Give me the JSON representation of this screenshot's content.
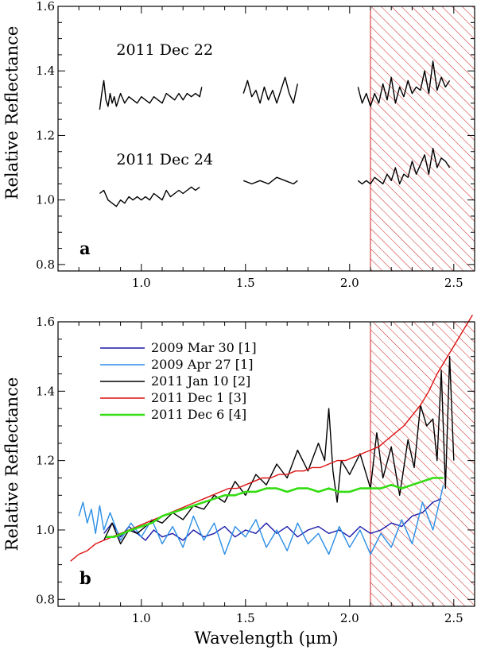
{
  "colors": {
    "hatch": "#cc2222",
    "axis": "#000000"
  },
  "figure": {
    "xlabel": "Wavelength (μm)"
  },
  "chart_data": [
    {
      "type": "line",
      "panel_label": "a",
      "ylabel": "Relative Reflectance",
      "xlim": [
        0.6,
        2.6
      ],
      "ylim": [
        0.78,
        1.6
      ],
      "xticks": [
        1.0,
        1.5,
        2.0,
        2.5
      ],
      "xtick_labels": [
        "1.0",
        "1.5",
        "2.0",
        "2.5"
      ],
      "yticks": [
        0.8,
        1.0,
        1.2,
        1.4,
        1.6
      ],
      "ytick_labels": [
        "0.8",
        "1.0",
        "1.2",
        "1.4",
        "1.6"
      ],
      "shaded_region": {
        "x_from": 2.1,
        "x_to": 2.6,
        "style": "red-hatch"
      },
      "annotations": [
        {
          "text": "2011 Dec 22",
          "x": 0.88,
          "y": 1.45
        },
        {
          "text": "2011 Dec 24",
          "x": 0.88,
          "y": 1.11
        }
      ],
      "series": [
        {
          "name": "2011 Dec 22",
          "color": "#000000",
          "segments": [
            {
              "x": [
                0.8,
                0.81,
                0.82,
                0.83,
                0.84,
                0.85,
                0.86,
                0.87,
                0.88,
                0.89,
                0.9,
                0.92,
                0.94,
                0.96,
                0.98,
                1.0,
                1.02,
                1.04,
                1.06,
                1.08,
                1.1,
                1.12,
                1.14,
                1.16,
                1.18,
                1.2,
                1.22,
                1.24,
                1.26,
                1.28,
                1.29
              ],
              "y": [
                1.28,
                1.33,
                1.37,
                1.31,
                1.29,
                1.33,
                1.3,
                1.32,
                1.29,
                1.31,
                1.33,
                1.3,
                1.32,
                1.31,
                1.3,
                1.32,
                1.31,
                1.3,
                1.32,
                1.31,
                1.3,
                1.33,
                1.32,
                1.31,
                1.33,
                1.31,
                1.33,
                1.32,
                1.33,
                1.32,
                1.35
              ]
            },
            {
              "x": [
                1.49,
                1.51,
                1.53,
                1.55,
                1.57,
                1.59,
                1.61,
                1.63,
                1.65,
                1.67,
                1.69,
                1.71,
                1.73,
                1.75
              ],
              "y": [
                1.33,
                1.37,
                1.32,
                1.34,
                1.3,
                1.35,
                1.31,
                1.34,
                1.3,
                1.34,
                1.38,
                1.33,
                1.3,
                1.36
              ]
            },
            {
              "x": [
                2.04,
                2.06,
                2.08,
                2.1,
                2.12,
                2.14,
                2.16,
                2.18,
                2.2,
                2.22,
                2.24,
                2.26,
                2.28,
                2.3,
                2.32,
                2.34,
                2.36,
                2.38,
                2.4,
                2.42,
                2.44,
                2.46,
                2.48
              ],
              "y": [
                1.35,
                1.3,
                1.33,
                1.29,
                1.33,
                1.3,
                1.36,
                1.31,
                1.38,
                1.3,
                1.35,
                1.32,
                1.37,
                1.33,
                1.35,
                1.34,
                1.4,
                1.33,
                1.43,
                1.34,
                1.38,
                1.35,
                1.37
              ]
            }
          ]
        },
        {
          "name": "2011 Dec 24",
          "color": "#000000",
          "segments": [
            {
              "x": [
                0.8,
                0.82,
                0.84,
                0.86,
                0.88,
                0.9,
                0.92,
                0.94,
                0.96,
                0.98,
                1.0,
                1.02,
                1.04,
                1.06,
                1.08,
                1.1,
                1.12,
                1.14,
                1.16,
                1.18,
                1.2,
                1.22,
                1.24,
                1.26,
                1.28
              ],
              "y": [
                1.02,
                1.03,
                1.0,
                0.99,
                0.98,
                1.0,
                0.99,
                1.01,
                1.0,
                1.01,
                1.0,
                1.01,
                1.0,
                1.02,
                1.01,
                1.0,
                1.03,
                1.01,
                1.02,
                1.03,
                1.02,
                1.03,
                1.04,
                1.03,
                1.04
              ]
            },
            {
              "x": [
                1.49,
                1.53,
                1.57,
                1.61,
                1.65,
                1.69,
                1.73,
                1.75
              ],
              "y": [
                1.06,
                1.05,
                1.06,
                1.05,
                1.07,
                1.06,
                1.05,
                1.06
              ]
            },
            {
              "x": [
                2.04,
                2.06,
                2.08,
                2.1,
                2.12,
                2.14,
                2.16,
                2.18,
                2.2,
                2.22,
                2.24,
                2.26,
                2.28,
                2.3,
                2.32,
                2.34,
                2.36,
                2.38,
                2.4,
                2.42,
                2.44,
                2.46,
                2.48
              ],
              "y": [
                1.06,
                1.05,
                1.06,
                1.05,
                1.07,
                1.06,
                1.05,
                1.08,
                1.06,
                1.1,
                1.05,
                1.08,
                1.07,
                1.12,
                1.08,
                1.11,
                1.14,
                1.08,
                1.16,
                1.1,
                1.13,
                1.12,
                1.1
              ]
            }
          ]
        }
      ]
    },
    {
      "type": "line",
      "panel_label": "b",
      "ylabel": "Relative Reflectance",
      "xlabel": "Wavelength (μm)",
      "xlim": [
        0.6,
        2.6
      ],
      "ylim": [
        0.78,
        1.6
      ],
      "xticks": [
        1.0,
        1.5,
        2.0,
        2.5
      ],
      "xtick_labels": [
        "1.0",
        "1.5",
        "2.0",
        "2.5"
      ],
      "yticks": [
        0.8,
        1.0,
        1.2,
        1.4,
        1.6
      ],
      "ytick_labels": [
        "0.8",
        "1.0",
        "1.2",
        "1.4",
        "1.6"
      ],
      "shaded_region": {
        "x_from": 2.1,
        "x_to": 2.6,
        "style": "red-hatch"
      },
      "legend": {
        "placement": "top-left"
      },
      "series": [
        {
          "name": "2009 Mar 30 [1]",
          "color": "#1a1aaa",
          "x": [
            0.82,
            0.86,
            0.9,
            0.94,
            0.98,
            1.02,
            1.06,
            1.1,
            1.15,
            1.2,
            1.25,
            1.3,
            1.35,
            1.4,
            1.45,
            1.5,
            1.55,
            1.6,
            1.65,
            1.7,
            1.75,
            1.8,
            1.85,
            1.9,
            1.95,
            2.0,
            2.05,
            2.1,
            2.15,
            2.2,
            2.25,
            2.3,
            2.35,
            2.4,
            2.44
          ],
          "y": [
            0.99,
            1.02,
            0.98,
            1.01,
            0.99,
            0.97,
            1.0,
            0.98,
            0.99,
            0.97,
            1.0,
            0.98,
            0.99,
            1.01,
            0.98,
            1.0,
            0.99,
            1.02,
            0.99,
            1.01,
            0.98,
            1.0,
            1.01,
            0.99,
            1.0,
            0.98,
            1.01,
            0.99,
            1.0,
            1.02,
            1.01,
            1.04,
            1.05,
            1.08,
            1.09
          ]
        },
        {
          "name": "2009 Apr 27 [1]",
          "color": "#2a8ee6",
          "x": [
            0.7,
            0.72,
            0.74,
            0.76,
            0.78,
            0.8,
            0.82,
            0.85,
            0.9,
            0.95,
            1.0,
            1.05,
            1.1,
            1.15,
            1.2,
            1.25,
            1.3,
            1.35,
            1.4,
            1.45,
            1.5,
            1.55,
            1.6,
            1.65,
            1.7,
            1.75,
            1.8,
            1.85,
            1.9,
            1.95,
            2.0,
            2.05,
            2.1,
            2.15,
            2.2,
            2.25,
            2.3,
            2.35,
            2.4,
            2.45
          ],
          "y": [
            1.04,
            1.08,
            1.02,
            1.06,
            0.99,
            1.07,
            1.0,
            1.05,
            0.97,
            1.02,
            0.98,
            1.03,
            0.96,
            1.01,
            0.95,
            1.04,
            0.97,
            1.02,
            0.93,
            1.01,
            0.98,
            1.03,
            0.95,
            1.0,
            0.94,
            1.02,
            0.96,
            0.99,
            0.93,
            1.01,
            0.95,
            1.0,
            0.93,
            0.99,
            0.95,
            1.03,
            0.96,
            1.08,
            1.0,
            1.13
          ]
        },
        {
          "name": "2011 Jan 10 [2]",
          "color": "#000000",
          "x": [
            0.82,
            0.86,
            0.9,
            0.94,
            0.98,
            1.02,
            1.06,
            1.1,
            1.15,
            1.2,
            1.25,
            1.3,
            1.35,
            1.4,
            1.45,
            1.5,
            1.55,
            1.6,
            1.65,
            1.7,
            1.75,
            1.8,
            1.85,
            1.88,
            1.9,
            1.92,
            1.94,
            1.96,
            2.0,
            2.05,
            2.1,
            2.13,
            2.16,
            2.2,
            2.24,
            2.28,
            2.31,
            2.34,
            2.37,
            2.4,
            2.42,
            2.44,
            2.46,
            2.48,
            2.5
          ],
          "y": [
            0.97,
            1.02,
            0.96,
            1.0,
            0.99,
            1.01,
            1.03,
            1.02,
            1.05,
            1.03,
            1.07,
            1.06,
            1.1,
            1.08,
            1.14,
            1.1,
            1.16,
            1.13,
            1.19,
            1.15,
            1.23,
            1.17,
            1.25,
            1.2,
            1.35,
            1.17,
            1.08,
            1.2,
            1.16,
            1.22,
            1.12,
            1.28,
            1.15,
            1.24,
            1.1,
            1.26,
            1.18,
            1.36,
            1.3,
            1.32,
            1.2,
            1.46,
            1.12,
            1.5,
            1.2
          ]
        },
        {
          "name": "2011 Dec 1 [3]",
          "color": "#dd1111",
          "x": [
            0.66,
            0.7,
            0.74,
            0.78,
            0.82,
            0.86,
            0.9,
            0.94,
            0.98,
            1.02,
            1.06,
            1.1,
            1.14,
            1.18,
            1.22,
            1.26,
            1.3,
            1.34,
            1.38,
            1.42,
            1.46,
            1.5,
            1.54,
            1.58,
            1.62,
            1.66,
            1.7,
            1.74,
            1.78,
            1.82,
            1.86,
            1.9,
            1.94,
            1.98,
            2.02,
            2.06,
            2.1,
            2.14,
            2.18,
            2.22,
            2.26,
            2.3,
            2.34,
            2.38,
            2.42,
            2.46,
            2.5,
            2.55,
            2.59
          ],
          "y": [
            0.91,
            0.93,
            0.94,
            0.96,
            0.97,
            0.98,
            0.99,
            1.0,
            1.01,
            1.02,
            1.03,
            1.04,
            1.05,
            1.06,
            1.07,
            1.08,
            1.09,
            1.1,
            1.11,
            1.12,
            1.12,
            1.13,
            1.14,
            1.15,
            1.15,
            1.16,
            1.16,
            1.17,
            1.17,
            1.18,
            1.18,
            1.19,
            1.2,
            1.2,
            1.21,
            1.22,
            1.23,
            1.24,
            1.26,
            1.28,
            1.3,
            1.33,
            1.36,
            1.4,
            1.45,
            1.49,
            1.53,
            1.58,
            1.62
          ]
        },
        {
          "name": "2011 Dec 6 [4]",
          "color": "#33dd11",
          "x": [
            0.83,
            0.87,
            0.91,
            0.95,
            1.0,
            1.05,
            1.1,
            1.15,
            1.2,
            1.25,
            1.3,
            1.35,
            1.4,
            1.45,
            1.5,
            1.55,
            1.6,
            1.65,
            1.7,
            1.75,
            1.8,
            1.85,
            1.9,
            1.95,
            2.0,
            2.05,
            2.1,
            2.15,
            2.2,
            2.25,
            2.3,
            2.35,
            2.4,
            2.45
          ],
          "y": [
            0.98,
            0.98,
            0.99,
            1.0,
            1.01,
            1.02,
            1.04,
            1.05,
            1.06,
            1.07,
            1.08,
            1.09,
            1.1,
            1.1,
            1.11,
            1.11,
            1.12,
            1.12,
            1.11,
            1.12,
            1.12,
            1.11,
            1.12,
            1.11,
            1.11,
            1.12,
            1.12,
            1.12,
            1.13,
            1.12,
            1.13,
            1.14,
            1.15,
            1.15
          ]
        }
      ]
    }
  ]
}
